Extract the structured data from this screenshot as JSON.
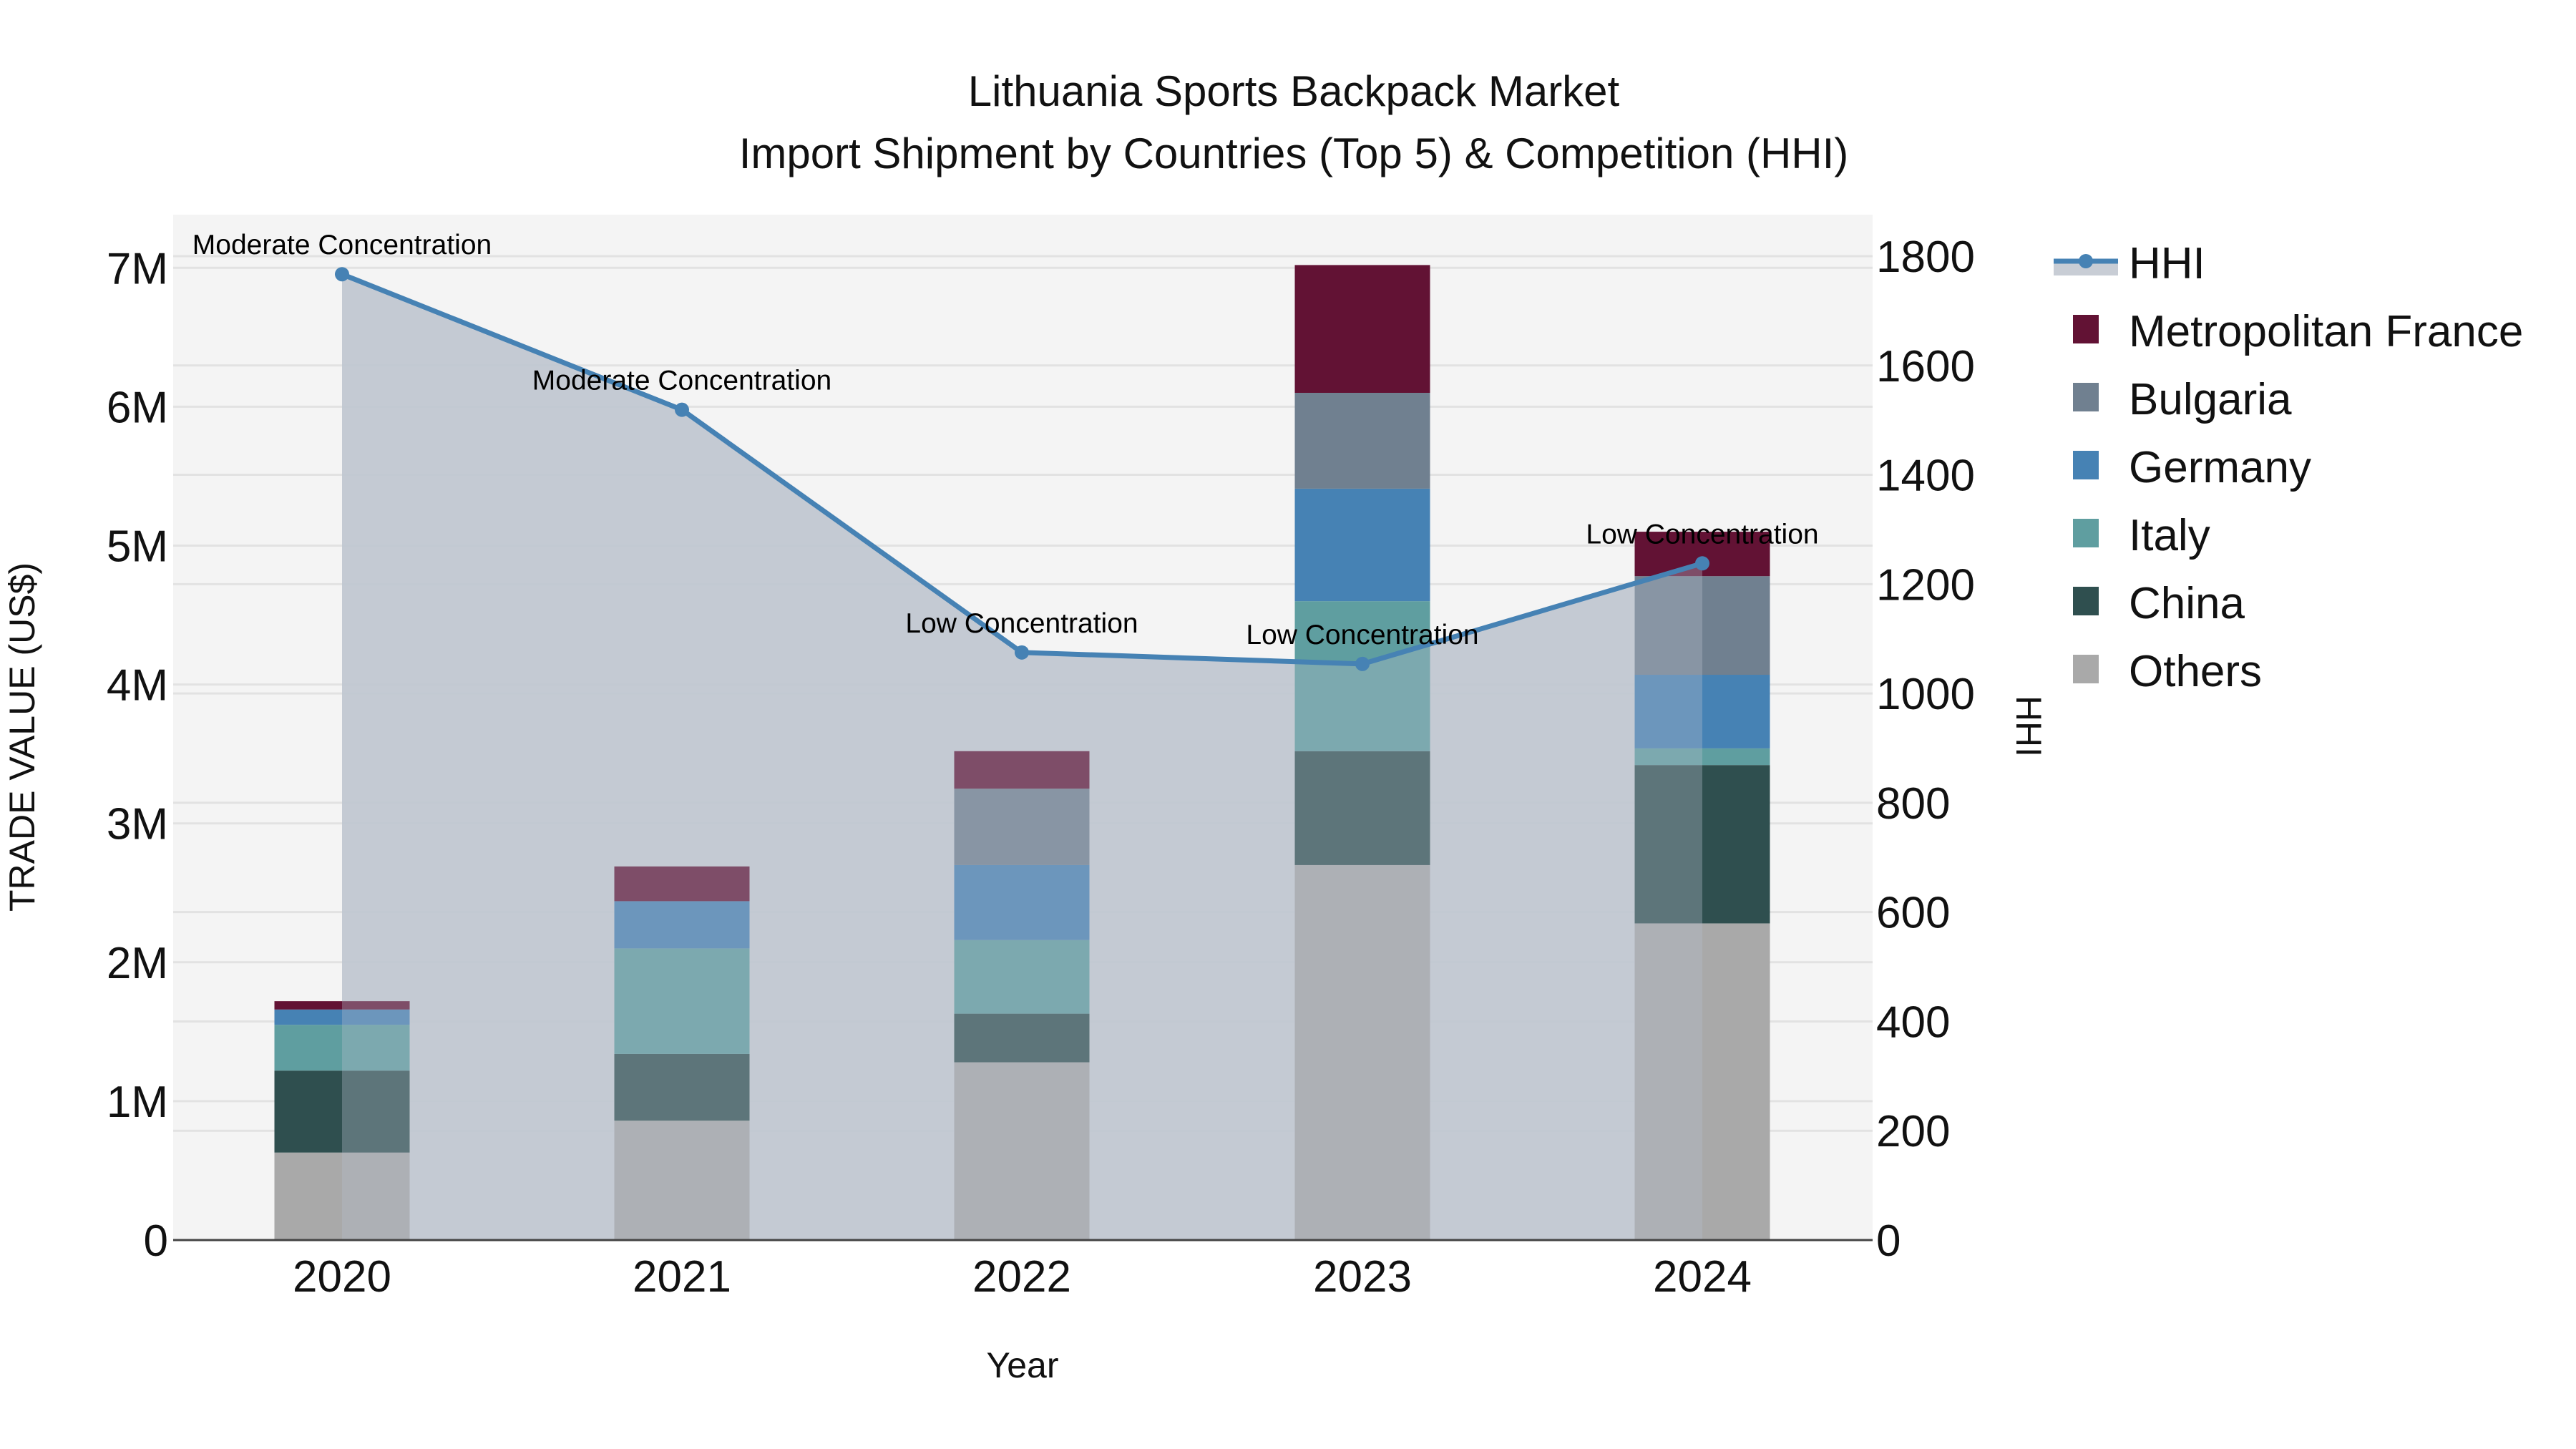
{
  "chart_data": {
    "type": "bar",
    "subtype": "stacked bar with line overlay (secondary axis)",
    "title": "Lithuania Sports Backpack Market",
    "subtitle": "Import Shipment by Countries (Top 5) & Competition (HHI)",
    "xlabel": "Year",
    "ylabel": "TRADE VALUE (US$)",
    "y2label": "HHI",
    "categories": [
      "2020",
      "2021",
      "2022",
      "2023",
      "2024"
    ],
    "ylim": [
      0,
      7300000
    ],
    "y2lim": [
      0,
      1860
    ],
    "yticks": [
      {
        "v": 0,
        "label": "0"
      },
      {
        "v": 1000000,
        "label": "1M"
      },
      {
        "v": 2000000,
        "label": "2M"
      },
      {
        "v": 3000000,
        "label": "3M"
      },
      {
        "v": 4000000,
        "label": "4M"
      },
      {
        "v": 5000000,
        "label": "5M"
      },
      {
        "v": 6000000,
        "label": "6M"
      },
      {
        "v": 7000000,
        "label": "7M"
      }
    ],
    "y2ticks": [
      0,
      200,
      400,
      600,
      800,
      1000,
      1200,
      1400,
      1600,
      1800
    ],
    "grid": true,
    "legend_position": "right",
    "series": [
      {
        "name": "Others",
        "color": "#a9a9a9",
        "values": [
          630000,
          860000,
          1280000,
          2700000,
          2280000
        ]
      },
      {
        "name": "China",
        "color": "#2f4f4f",
        "values": [
          590000,
          480000,
          350000,
          820000,
          1140000
        ]
      },
      {
        "name": "Italy",
        "color": "#5f9ea0",
        "values": [
          330000,
          760000,
          530000,
          1080000,
          120000
        ]
      },
      {
        "name": "Germany",
        "color": "#4682b4",
        "values": [
          110000,
          340000,
          540000,
          810000,
          530000
        ]
      },
      {
        "name": "Bulgaria",
        "color": "#708090",
        "values": [
          0,
          0,
          550000,
          690000,
          710000
        ]
      },
      {
        "name": "Metropolitan France",
        "color": "#621234",
        "values": [
          60000,
          250000,
          270000,
          920000,
          320000
        ]
      }
    ],
    "line_series": {
      "name": "HHI",
      "color": "#4682b4",
      "fill": "#c8cdd5",
      "values": [
        1767,
        1519,
        1075,
        1054,
        1238
      ],
      "annotations": [
        "Moderate Concentration",
        "Moderate Concentration",
        "Low Concentration",
        "Low Concentration",
        "Low Concentration"
      ]
    }
  },
  "legend": {
    "items": [
      {
        "label": "HHI",
        "kind": "line",
        "color": "#4682b4"
      },
      {
        "label": "Metropolitan France",
        "kind": "box",
        "color": "#621234"
      },
      {
        "label": "Bulgaria",
        "kind": "box",
        "color": "#708090"
      },
      {
        "label": "Germany",
        "kind": "box",
        "color": "#4682b4"
      },
      {
        "label": "Italy",
        "kind": "box",
        "color": "#5f9ea0"
      },
      {
        "label": "China",
        "kind": "box",
        "color": "#2f4f4f"
      },
      {
        "label": "Others",
        "kind": "box",
        "color": "#a9a9a9"
      }
    ]
  },
  "colors": {
    "plot_bg": "#f4f4f4",
    "grid": "#e2e2e2",
    "area_fill": "#c8cdd5",
    "axis_line": "#444444"
  }
}
